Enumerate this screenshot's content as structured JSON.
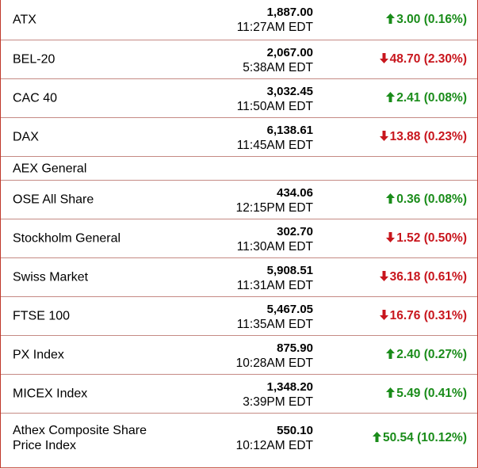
{
  "colors": {
    "up": "#1a8c1a",
    "down": "#c8161d",
    "border": "#c0392b"
  },
  "indices": [
    {
      "name": "ATX",
      "value": "1,887.00",
      "time": "11:27AM EDT",
      "dir": "up",
      "change": "3.00 (0.16%)"
    },
    {
      "name": "BEL-20",
      "value": "2,067.00",
      "time": "5:38AM EDT",
      "dir": "down",
      "change": "48.70 (2.30%)"
    },
    {
      "name": "CAC 40",
      "value": "3,032.45",
      "time": "11:50AM EDT",
      "dir": "up",
      "change": "2.41 (0.08%)"
    },
    {
      "name": "DAX",
      "value": "6,138.61",
      "time": "11:45AM EDT",
      "dir": "down",
      "change": "13.88 (0.23%)"
    },
    {
      "name": "AEX General",
      "value": "",
      "time": "",
      "dir": "",
      "change": ""
    },
    {
      "name": "OSE All Share",
      "value": "434.06",
      "time": "12:15PM EDT",
      "dir": "up",
      "change": "0.36 (0.08%)"
    },
    {
      "name": "Stockholm General",
      "value": "302.70",
      "time": "11:30AM EDT",
      "dir": "down",
      "change": "1.52 (0.50%)"
    },
    {
      "name": "Swiss Market",
      "value": "5,908.51",
      "time": "11:31AM EDT",
      "dir": "down",
      "change": "36.18 (0.61%)"
    },
    {
      "name": "FTSE 100",
      "value": "5,467.05",
      "time": "11:35AM EDT",
      "dir": "down",
      "change": "16.76 (0.31%)"
    },
    {
      "name": "PX Index",
      "value": "875.90",
      "time": "10:28AM EDT",
      "dir": "up",
      "change": "2.40 (0.27%)"
    },
    {
      "name": "MICEX Index",
      "value": "1,348.20",
      "time": "3:39PM EDT",
      "dir": "up",
      "change": "5.49 (0.41%)"
    },
    {
      "name": "Athex Composite Share Price Index",
      "value": "550.10",
      "time": "10:12AM EDT",
      "dir": "up",
      "change": "50.54 (10.12%)"
    }
  ]
}
